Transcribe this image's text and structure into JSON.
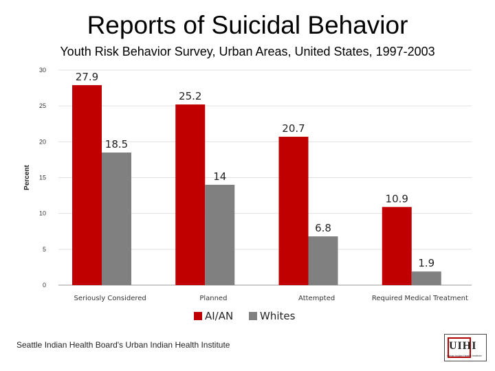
{
  "slide": {
    "title": "Reports of Suicidal Behavior",
    "subtitle": "Youth Risk Behavior Survey, Urban Areas, United States, 1997-2003",
    "footer": "Seattle Indian Health Board's Urban Indian Health Institute",
    "logo_text": "UIHI",
    "logo_subtext": "Urban Indian Health Institute"
  },
  "colors": {
    "aian": "#c00000",
    "whites": "#808080",
    "grid": "#e0e0e0"
  },
  "chart_data": {
    "type": "bar",
    "categories": [
      "Seriously Considered",
      "Planned",
      "Attempted",
      "Required Medical Treatment"
    ],
    "series": [
      {
        "name": "AI/AN",
        "values": [
          27.9,
          25.2,
          20.7,
          10.9
        ],
        "labels": [
          "27.9",
          "25.2",
          "20.7",
          "10.9"
        ]
      },
      {
        "name": "Whites",
        "values": [
          18.5,
          14,
          6.8,
          1.9
        ],
        "labels": [
          "18.5",
          "14",
          "6.8",
          "1.9"
        ]
      }
    ],
    "ylabel": "Percent",
    "xlabel": "",
    "ylim": [
      0,
      30
    ],
    "yticks": [
      "0",
      "5",
      "10",
      "15",
      "20",
      "25",
      "30"
    ],
    "grid": true,
    "legend": "bottom"
  }
}
